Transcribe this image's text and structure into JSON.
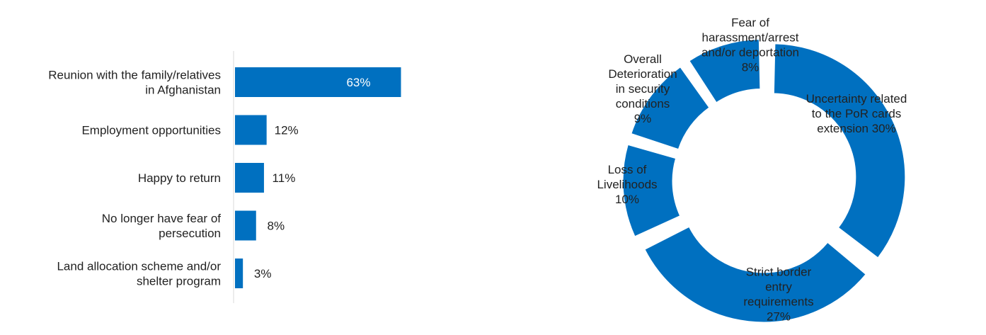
{
  "colors": {
    "bar": "#0070C0",
    "axis": "#D9D9D9",
    "text": "#222222",
    "inner_label": "#ffffff"
  },
  "chart_data": [
    {
      "type": "bar",
      "orientation": "horizontal",
      "categories": [
        [
          "Reunion with the family/relatives",
          "in Afghanistan"
        ],
        [
          "Employment opportunities"
        ],
        [
          "Happy to return"
        ],
        [
          "No longer have fear of",
          "persecution"
        ],
        [
          "Land allocation scheme and/or",
          "shelter program"
        ]
      ],
      "values": [
        63,
        12,
        11,
        8,
        3
      ],
      "value_labels": [
        "63%",
        "12%",
        "11%",
        "8%",
        "3%"
      ],
      "unit": "%",
      "xlim": [
        0,
        100
      ],
      "grid": false,
      "legend": "none"
    },
    {
      "type": "pie",
      "style": "donut-exploded",
      "slices": [
        {
          "label": [
            "Uncertainty related",
            "to the PoR cards",
            "extension 30%"
          ],
          "value": 30
        },
        {
          "label": [
            "Strict border",
            "entry",
            "requirements",
            "27%"
          ],
          "value": 27
        },
        {
          "label": [
            "Loss of",
            "Livelihoods",
            "10%"
          ],
          "value": 10
        },
        {
          "label": [
            "Overall",
            "Deterioration",
            "in security",
            "conditions",
            "9%"
          ],
          "value": 9
        },
        {
          "label": [
            "Fear of",
            "harassment/arrest",
            "and/or deportation",
            "8%"
          ],
          "value": 8
        }
      ],
      "legend": "none"
    }
  ]
}
